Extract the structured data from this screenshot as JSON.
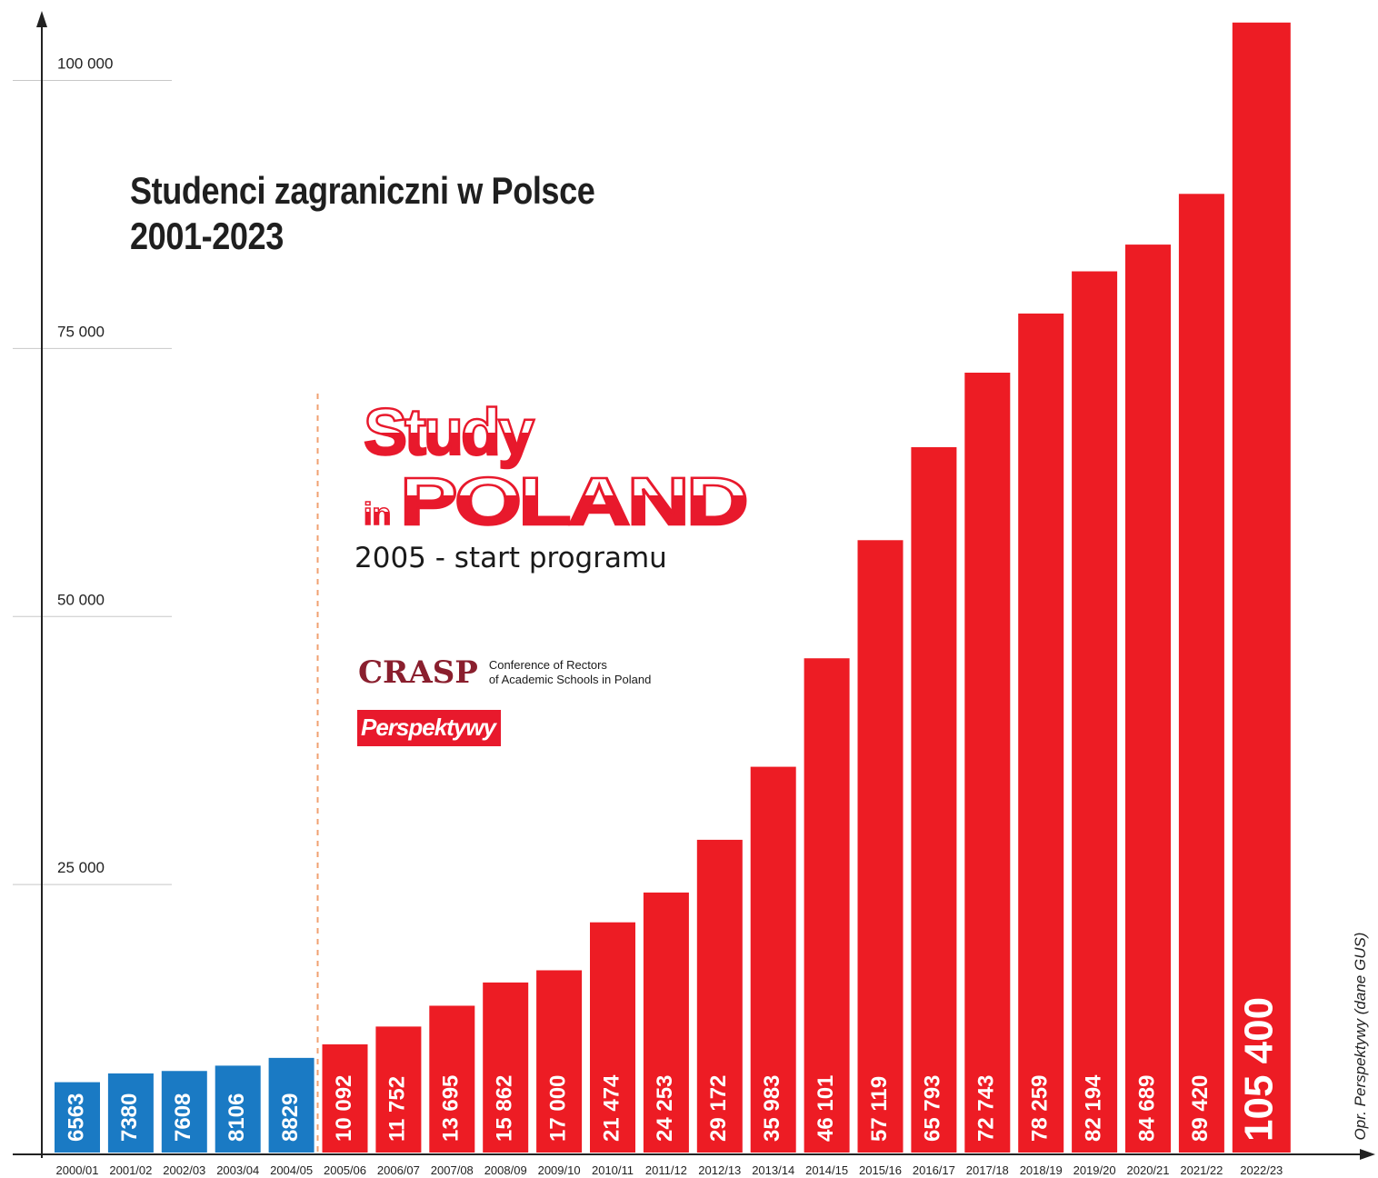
{
  "title": {
    "line1": "Studenci zagraniczni w Polsce",
    "line2": "2001-2023"
  },
  "logos": {
    "study_line1": "Study",
    "study_line2_small": "in",
    "study_line2_big": "POLAND",
    "program_start": "2005 - start programu",
    "crasp_mark": "CRASP",
    "crasp_line1": "Conference of Rectors",
    "crasp_line2": "of Academic Schools in Poland",
    "perspektywy": "Perspektywy"
  },
  "source_note": "Opr. Perspektywy (dane GUS)",
  "colors": {
    "before_program": "#1a7ac4",
    "after_program": "#ed1c24",
    "axis": "#222222",
    "gridline": "#c8c8c8",
    "divider": "#f0a070"
  },
  "chart_data": {
    "type": "bar",
    "title": "Studenci zagraniczni w Polsce 2001-2023",
    "xlabel": "",
    "ylabel": "",
    "ylim": [
      0,
      104000
    ],
    "yticks": [
      25000,
      50000,
      75000,
      100000
    ],
    "ytick_labels": [
      "25 000",
      "50 000",
      "75 000",
      "100 000"
    ],
    "grid": false,
    "categories": [
      "2000/01",
      "2001/02",
      "2002/03",
      "2003/04",
      "2004/05",
      "2005/06",
      "2006/07",
      "2007/08",
      "2008/09",
      "2009/10",
      "2010/11",
      "2011/12",
      "2012/13",
      "2013/14",
      "2014/15",
      "2015/16",
      "2016/17",
      "2017/18",
      "2018/19",
      "2019/20",
      "2020/21",
      "2021/22",
      "2022/23"
    ],
    "values": [
      6563,
      7380,
      7608,
      8106,
      8829,
      10092,
      11752,
      13695,
      15862,
      17000,
      21474,
      24253,
      29172,
      35983,
      46101,
      57119,
      65793,
      72743,
      78259,
      82194,
      84689,
      89420,
      105400
    ],
    "value_labels": [
      "6563",
      "7380",
      "7608",
      "8106",
      "8829",
      "10 092",
      "11 752",
      "13 695",
      "15 862",
      "17 000",
      "21 474",
      "24 253",
      "29 172",
      "35 983",
      "46 101",
      "57 119",
      "65 793",
      "72 743",
      "78 259",
      "82 194",
      "84 689",
      "89 420",
      "105 400"
    ],
    "program_start_category": "2005/06"
  }
}
